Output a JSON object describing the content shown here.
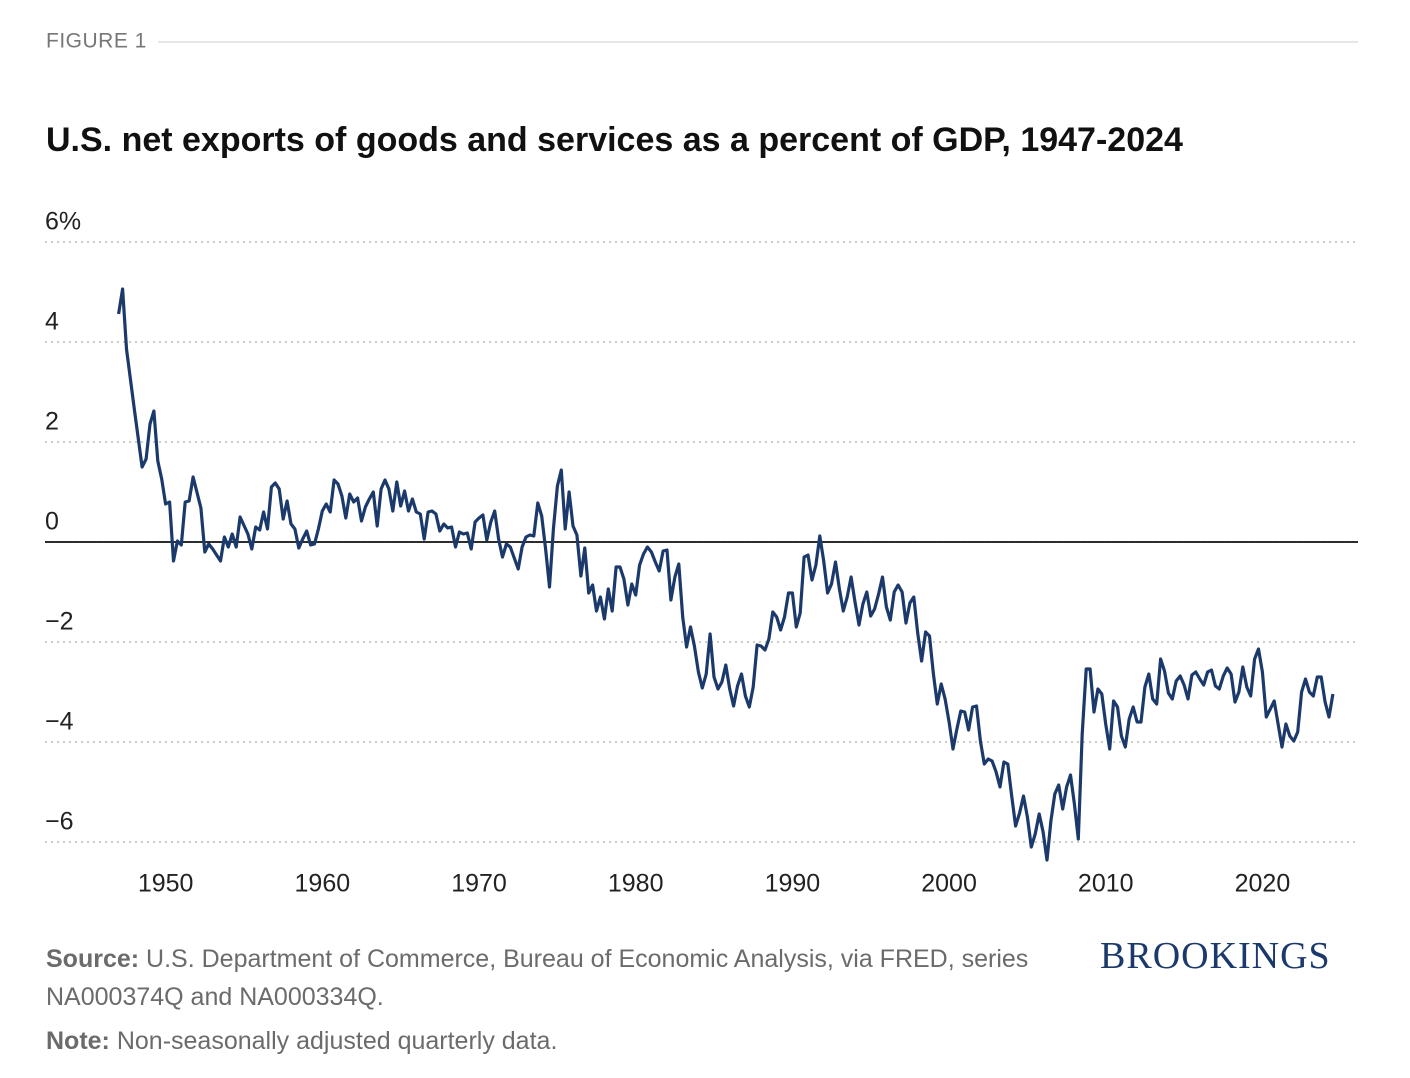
{
  "figure_label": "FIGURE 1",
  "source_label": "Source:",
  "source_text": "U.S. Department of Commerce, Bureau of Economic Analysis, via FRED, series NA000374Q and NA000334Q.",
  "note_label": "Note:",
  "note_text": "Non-seasonally adjusted quarterly data.",
  "logo": "BROOKINGS",
  "chart_data": {
    "type": "line",
    "title": "U.S. net exports of goods and services as a percent of GDP, 1947-2024",
    "color": "#1b3a6b",
    "grid": true,
    "xlim": [
      1942.3,
      2026.1
    ],
    "xticks": [
      1950,
      1960,
      1970,
      1980,
      1990,
      2000,
      2010,
      2020
    ],
    "ylim": [
      -6.4,
      6
    ],
    "yticks": [
      {
        "value": 6,
        "label": "6%"
      },
      4,
      2,
      0,
      {
        "value": -2,
        "label": "−2"
      },
      {
        "value": -4,
        "label": "−4"
      },
      {
        "value": -6,
        "label": "−6"
      }
    ],
    "x": [
      1947,
      1947.25,
      1947.5,
      1948,
      1948.5,
      1948.75,
      1949,
      1949.25,
      1949.5,
      1949.75,
      1950,
      1950.25,
      1950.5,
      1950.75,
      1951,
      1951.25,
      1951.5,
      1951.75,
      1952.25,
      1952.5,
      1952.75,
      1953,
      1953.5,
      1953.75,
      1954,
      1954.25,
      1954.5,
      1954.75,
      1955.25,
      1955.5,
      1955.75,
      1956,
      1956.25,
      1956.5,
      1956.75,
      1957,
      1957.25,
      1957.5,
      1957.75,
      1958,
      1958.25,
      1958.5,
      1958.75,
      1959,
      1959.25,
      1959.5,
      1959.75,
      1960,
      1960.25,
      1960.5,
      1960.75,
      1961,
      1961.25,
      1961.5,
      1961.75,
      1962,
      1962.25,
      1962.5,
      1962.75,
      1963,
      1963.25,
      1963.5,
      1963.75,
      1964,
      1964.25,
      1964.5,
      1964.75,
      1965,
      1965.25,
      1965.5,
      1965.75,
      1966,
      1966.25,
      1966.5,
      1966.75,
      1967,
      1967.25,
      1967.5,
      1967.75,
      1968,
      1968.25,
      1968.5,
      1968.75,
      1969,
      1969.25,
      1969.5,
      1969.75,
      1970,
      1970.25,
      1970.5,
      1970.75,
      1971,
      1971.25,
      1971.5,
      1971.75,
      1972,
      1972.5,
      1972.75,
      1973,
      1973.25,
      1973.5,
      1973.75,
      1974,
      1974.25,
      1974.5,
      1974.75,
      1975,
      1975.25,
      1975.5,
      1975.75,
      1976,
      1976.25,
      1976.5,
      1976.75,
      1977,
      1977.25,
      1977.5,
      1977.75,
      1978,
      1978.25,
      1978.5,
      1978.75,
      1979,
      1979.25,
      1979.5,
      1979.75,
      1980,
      1980.25,
      1980.5,
      1980.75,
      1981,
      1981.25,
      1981.5,
      1981.75,
      1982,
      1982.25,
      1982.5,
      1982.75,
      1983,
      1983.25,
      1983.5,
      1983.75,
      1984,
      1984.25,
      1984.5,
      1984.75,
      1985,
      1985.25,
      1985.5,
      1985.75,
      1986,
      1986.25,
      1986.5,
      1986.75,
      1987,
      1987.25,
      1987.5,
      1987.75,
      1988,
      1988.25,
      1988.5,
      1988.75,
      1989,
      1989.25,
      1989.5,
      1989.75,
      1990,
      1990.25,
      1990.5,
      1990.75,
      1991,
      1991.25,
      1991.5,
      1991.75,
      1992,
      1992.25,
      1992.5,
      1992.75,
      1993,
      1993.25,
      1993.5,
      1993.75,
      1994,
      1994.25,
      1994.5,
      1994.75,
      1995,
      1995.25,
      1995.5,
      1995.75,
      1996,
      1996.25,
      1996.5,
      1996.75,
      1997,
      1997.25,
      1997.5,
      1997.75,
      1998,
      1998.25,
      1998.5,
      1998.75,
      1999,
      1999.25,
      1999.5,
      1999.75,
      2000,
      2000.25,
      2000.5,
      2000.75,
      2001,
      2001.25,
      2001.5,
      2001.75,
      2002,
      2002.25,
      2002.5,
      2002.75,
      2003,
      2003.25,
      2003.5,
      2003.75,
      2004,
      2004.25,
      2004.5,
      2004.75,
      2005,
      2005.25,
      2005.5,
      2005.75,
      2006,
      2006.25,
      2006.5,
      2006.75,
      2007,
      2007.25,
      2007.5,
      2007.75,
      2008,
      2008.25,
      2008.5,
      2008.75,
      2009,
      2009.25,
      2009.5,
      2009.75,
      2010,
      2010.25,
      2010.5,
      2010.75,
      2011,
      2011.25,
      2011.5,
      2011.75,
      2012,
      2012.25,
      2012.5,
      2012.75,
      2013,
      2013.25,
      2013.5,
      2013.75,
      2014,
      2014.25,
      2014.5,
      2014.75,
      2015,
      2015.25,
      2015.5,
      2015.75,
      2016,
      2016.25,
      2016.5,
      2016.75,
      2017,
      2017.25,
      2017.5,
      2017.75,
      2018,
      2018.25,
      2018.5,
      2018.75,
      2019,
      2019.25,
      2019.5,
      2019.75,
      2020,
      2020.25,
      2020.5,
      2020.75,
      2021,
      2021.25,
      2021.5,
      2021.75,
      2022,
      2022.25,
      2022.5,
      2022.75,
      2023,
      2023.25,
      2023.5,
      2023.75,
      2024,
      2024.25,
      2024.5
    ],
    "values": [
      4.56,
      5.06,
      3.86,
      2.66,
      1.5,
      1.66,
      2.36,
      2.62,
      1.62,
      1.26,
      0.76,
      0.8,
      -0.38,
      0.02,
      -0.06,
      0.8,
      0.82,
      1.3,
      0.68,
      -0.2,
      -0.04,
      -0.14,
      -0.38,
      0.1,
      -0.1,
      0.16,
      -0.1,
      0.5,
      0.16,
      -0.14,
      0.3,
      0.24,
      0.6,
      0.26,
      1.1,
      1.18,
      1.06,
      0.46,
      0.82,
      0.36,
      0.26,
      -0.12,
      0.06,
      0.22,
      -0.06,
      -0.04,
      0.26,
      0.62,
      0.76,
      0.6,
      1.24,
      1.16,
      0.92,
      0.48,
      0.96,
      0.8,
      0.88,
      0.42,
      0.7,
      0.86,
      1.0,
      0.32,
      1.06,
      1.24,
      1.06,
      0.62,
      1.2,
      0.72,
      1.02,
      0.62,
      0.86,
      0.6,
      0.56,
      0.06,
      0.6,
      0.62,
      0.56,
      0.22,
      0.36,
      0.28,
      0.3,
      -0.1,
      0.2,
      0.16,
      0.18,
      -0.14,
      0.4,
      0.48,
      0.54,
      0.04,
      0.4,
      0.62,
      0.06,
      -0.3,
      -0.04,
      -0.1,
      -0.54,
      -0.1,
      0.1,
      0.14,
      0.12,
      0.78,
      0.52,
      -0.14,
      -0.9,
      0.26,
      1.12,
      1.44,
      0.26,
      1.0,
      0.32,
      0.14,
      -0.68,
      -0.12,
      -1.02,
      -0.86,
      -1.38,
      -1.1,
      -1.54,
      -0.94,
      -1.38,
      -0.5,
      -0.5,
      -0.74,
      -1.26,
      -0.84,
      -1.06,
      -0.46,
      -0.24,
      -0.1,
      -0.2,
      -0.4,
      -0.58,
      -0.18,
      -0.16,
      -1.16,
      -0.7,
      -0.44,
      -1.5,
      -2.1,
      -1.7,
      -2.08,
      -2.6,
      -2.92,
      -2.64,
      -1.84,
      -2.7,
      -2.94,
      -2.8,
      -2.46,
      -2.94,
      -3.28,
      -2.88,
      -2.64,
      -3.08,
      -3.3,
      -2.9,
      -2.06,
      -2.08,
      -2.16,
      -1.94,
      -1.4,
      -1.5,
      -1.76,
      -1.5,
      -1.02,
      -1.02,
      -1.7,
      -1.42,
      -0.3,
      -0.26,
      -0.76,
      -0.46,
      0.12,
      -0.38,
      -1.02,
      -0.84,
      -0.4,
      -0.94,
      -1.38,
      -1.1,
      -0.7,
      -1.2,
      -1.66,
      -1.24,
      -1.0,
      -1.48,
      -1.34,
      -1.04,
      -0.7,
      -1.3,
      -1.56,
      -1.0,
      -0.86,
      -1.0,
      -1.62,
      -1.22,
      -1.1,
      -1.82,
      -2.38,
      -1.8,
      -1.88,
      -2.64,
      -3.24,
      -2.84,
      -3.14,
      -3.6,
      -4.14,
      -3.74,
      -3.38,
      -3.4,
      -3.76,
      -3.3,
      -3.28,
      -3.98,
      -4.44,
      -4.34,
      -4.38,
      -4.6,
      -4.9,
      -4.4,
      -4.44,
      -5.08,
      -5.68,
      -5.42,
      -5.08,
      -5.5,
      -6.1,
      -5.84,
      -5.44,
      -5.8,
      -6.36,
      -5.58,
      -5.04,
      -4.86,
      -5.34,
      -4.9,
      -4.66,
      -5.24,
      -5.94,
      -3.84,
      -2.54,
      -2.54,
      -3.4,
      -2.94,
      -3.04,
      -3.64,
      -4.14,
      -3.18,
      -3.3,
      -3.88,
      -4.1,
      -3.54,
      -3.3,
      -3.6,
      -3.6,
      -2.9,
      -2.64,
      -3.14,
      -3.24,
      -2.34,
      -2.58,
      -3.02,
      -3.14,
      -2.78,
      -2.68,
      -2.86,
      -3.14,
      -2.66,
      -2.6,
      -2.74,
      -2.86,
      -2.6,
      -2.56,
      -2.88,
      -2.94,
      -2.68,
      -2.52,
      -2.64,
      -3.2,
      -3.0,
      -2.5,
      -2.9,
      -3.08,
      -2.34,
      -2.14,
      -2.6,
      -3.5,
      -3.34,
      -3.18,
      -3.64,
      -4.1,
      -3.64,
      -3.88,
      -3.98,
      -3.8,
      -3.0,
      -2.74,
      -3.0,
      -3.08,
      -2.7,
      -2.7,
      -3.2,
      -3.5,
      -3.04
    ]
  }
}
